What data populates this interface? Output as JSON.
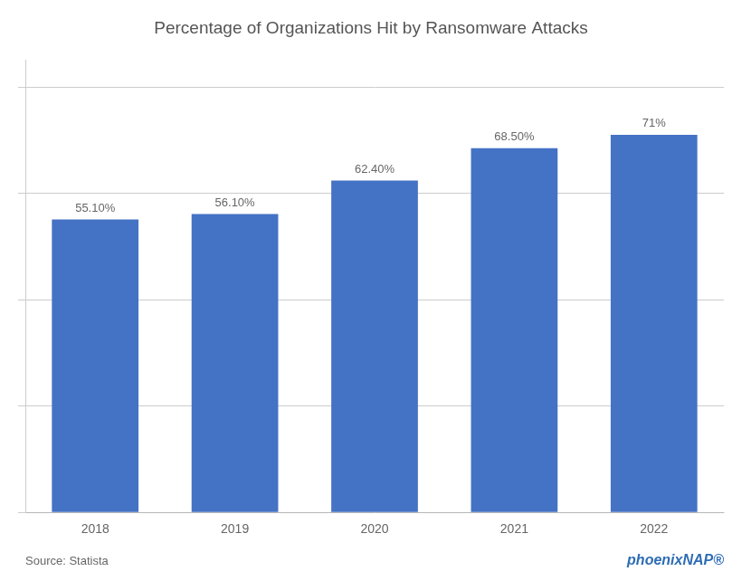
{
  "chart_data": {
    "type": "bar",
    "title": "Percentage of Organizations Hit by Ransomware Attacks",
    "categories": [
      "2018",
      "2019",
      "2020",
      "2021",
      "2022"
    ],
    "values": [
      55.1,
      56.1,
      62.4,
      68.5,
      71.0
    ],
    "value_labels": [
      "55.10%",
      "56.10%",
      "62.40%",
      "68.50%",
      "71%"
    ],
    "data_labels": true,
    "color": "#4472C4",
    "ylim": [
      0,
      85
    ],
    "yticks": [
      0,
      20,
      40,
      60,
      80
    ],
    "grid": true,
    "tick_labels": "x",
    "annotations": [
      "Source: Statista",
      "phoenixNAP®"
    ]
  }
}
